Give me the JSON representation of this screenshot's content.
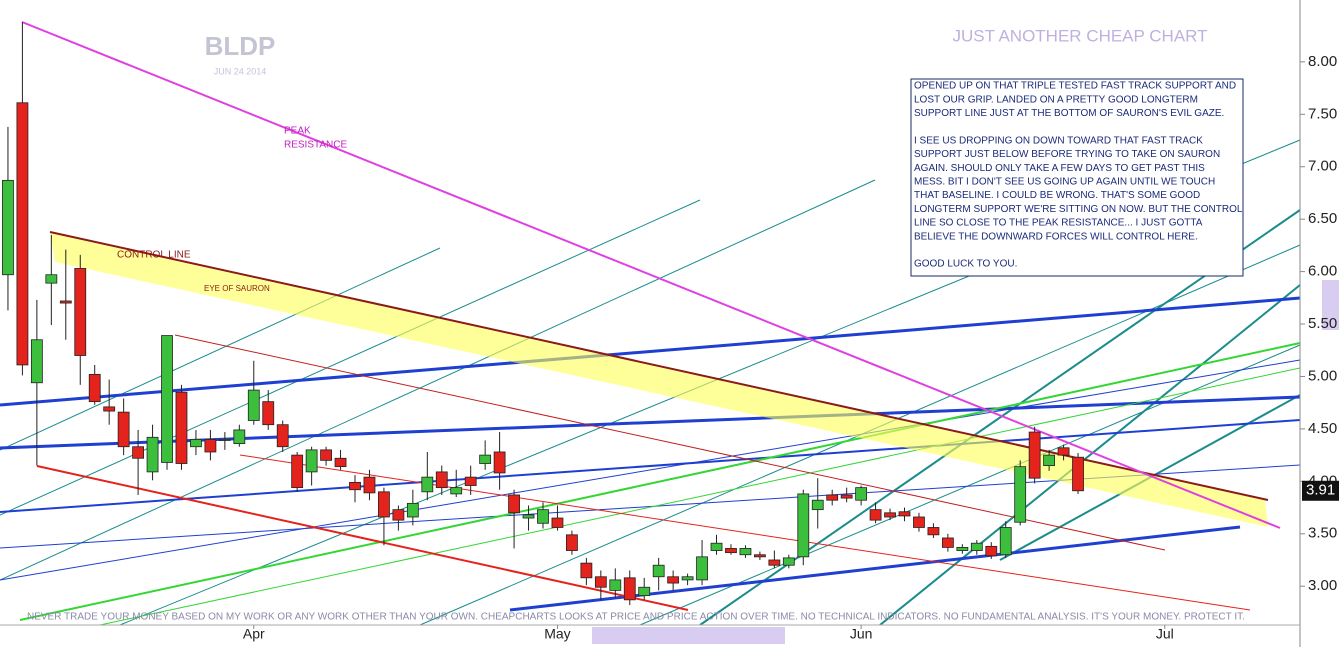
{
  "chart_data": {
    "type": "candlestick",
    "title": "BLDP",
    "subtitle": "JUN 24 2014",
    "header": "JUST ANOTHER CHEAP CHART",
    "annotations": [
      "PEAK",
      "RESISTANCE",
      "CONTROL LINE",
      "EYE OF SAURON"
    ],
    "note": [
      [
        "OPENED UP ON THAT TRIPLE TESTED FAST TRACK SUPPORT AND",
        "LOST OUR GRIP. LANDED ON A PRETTY GOOD LONGTERM",
        "SUPPORT LINE JUST AT THE BOTTOM OF SAURON'S EVIL GAZE."
      ],
      [
        "I SEE US DROPPING ON DOWN TOWARD THAT FAST TRACK",
        "SUPPORT JUST BELOW BEFORE TRYING TO TAKE ON SAURON",
        "AGAIN. SHOULD ONLY TAKE A FEW DAYS TO GET PAST THIS",
        "MESS. BIT I DON'T SEE US GOING UP AGAIN UNTIL WE TOUCH",
        "THAT BASELINE. I COULD BE WRONG. THAT'S SOME GOOD",
        "LONGTERM SUPPORT WE'RE SITTING ON NOW. BUT THE CONTROL",
        "LINE SO CLOSE TO THE PEAK RESISTANCE... I JUST GOTTA",
        "BELIEVE THE DOWNWARD FORCES WILL CONTROL HERE."
      ],
      [
        "GOOD LUCK TO YOU."
      ]
    ],
    "disclaimer": "NEVER TRADE YOUR MONEY BASED ON MY WORK OR ANY WORK OTHER THAN YOUR OWN. CHEAPCHARTS LOOKS AT PRICE AND PRICE ACTION OVER TIME. NO TECHNICAL INDICATORS. NO FUNDAMENTAL ANALYSIS. IT'S YOUR MONEY. PROTECT IT.",
    "open": [
      5.97,
      7.61,
      4.94,
      5.89,
      5.72,
      6.03,
      5.02,
      4.71,
      4.66,
      4.33,
      4.09,
      4.18,
      4.85,
      4.33,
      4.4,
      4.39,
      4.36,
      4.58,
      4.76,
      4.54,
      4.25,
      4.09,
      4.3,
      4.22,
      3.99,
      4.04,
      3.9,
      3.73,
      3.66,
      3.9,
      4.09,
      3.88,
      4.04,
      4.17,
      4.28,
      3.87,
      3.65,
      3.6,
      3.65,
      3.49,
      3.22,
      3.09,
      2.96,
      3.08,
      2.91,
      3.09,
      3.09,
      3.06,
      3.06,
      3.34,
      3.36,
      3.3,
      3.3,
      3.25,
      3.2,
      3.28,
      3.73,
      3.87,
      3.87,
      3.82,
      3.73,
      3.7,
      3.71,
      3.66,
      3.56,
      3.46,
      3.34,
      3.34,
      3.38,
      3.3,
      3.61,
      4.47,
      4.15,
      4.32,
      4.23
    ],
    "high": [
      7.38,
      8.38,
      5.73,
      6.35,
      6.21,
      6.16,
      5.11,
      4.97,
      4.79,
      4.49,
      4.54,
      5.39,
      4.92,
      4.49,
      4.49,
      4.47,
      4.54,
      5.15,
      4.87,
      4.58,
      4.28,
      4.33,
      4.33,
      4.3,
      4.06,
      4.11,
      3.94,
      3.77,
      3.92,
      4.28,
      4.15,
      4.11,
      4.15,
      4.39,
      4.47,
      3.92,
      3.77,
      3.8,
      3.77,
      3.53,
      3.27,
      3.15,
      3.17,
      3.15,
      3.08,
      3.27,
      3.15,
      3.12,
      3.44,
      3.49,
      3.4,
      3.39,
      3.33,
      3.34,
      3.3,
      3.92,
      4.03,
      3.92,
      3.94,
      3.96,
      3.8,
      3.74,
      3.75,
      3.7,
      3.6,
      3.5,
      3.4,
      3.44,
      3.42,
      3.62,
      4.2,
      4.52,
      4.3,
      4.35,
      4.27
    ],
    "low": [
      5.63,
      5.01,
      4.15,
      5.49,
      5.35,
      4.92,
      4.73,
      4.54,
      4.25,
      3.87,
      4.01,
      4.11,
      4.11,
      4.25,
      4.2,
      4.3,
      4.33,
      4.54,
      4.49,
      4.28,
      3.9,
      3.96,
      4.15,
      4.11,
      3.8,
      3.82,
      3.39,
      3.53,
      3.58,
      3.82,
      3.87,
      3.85,
      3.87,
      4.11,
      3.92,
      3.36,
      3.53,
      3.55,
      3.53,
      3.3,
      3.01,
      2.87,
      2.89,
      2.82,
      2.87,
      2.96,
      2.96,
      3.01,
      3.01,
      3.3,
      3.3,
      3.27,
      3.25,
      3.17,
      3.17,
      3.2,
      3.55,
      3.77,
      3.8,
      3.77,
      3.6,
      3.63,
      3.62,
      3.52,
      3.46,
      3.33,
      3.31,
      3.3,
      3.26,
      3.27,
      3.58,
      3.98,
      4.1,
      4.2,
      3.88
    ],
    "close": [
      6.87,
      5.11,
      5.35,
      5.97,
      5.7,
      5.2,
      4.76,
      4.67,
      4.33,
      4.22,
      4.42,
      5.39,
      4.17,
      4.4,
      4.28,
      4.4,
      4.49,
      4.87,
      4.54,
      4.33,
      3.94,
      4.3,
      4.2,
      4.14,
      3.92,
      3.89,
      3.66,
      3.63,
      3.79,
      4.04,
      3.94,
      3.94,
      3.96,
      4.25,
      4.08,
      3.7,
      3.68,
      3.73,
      3.56,
      3.34,
      3.08,
      2.99,
      3.06,
      2.87,
      2.99,
      3.2,
      3.03,
      3.09,
      3.28,
      3.41,
      3.32,
      3.36,
      3.28,
      3.2,
      3.27,
      3.88,
      3.82,
      3.82,
      3.84,
      3.94,
      3.63,
      3.66,
      3.67,
      3.56,
      3.49,
      3.37,
      3.37,
      3.41,
      3.29,
      3.56,
      4.14,
      4.03,
      4.25,
      4.25,
      3.91
    ],
    "up_color": "#3cbf3c",
    "down_color": "#e3231c",
    "xlim": [
      -0.55,
      89.35
    ],
    "xticks": [
      {
        "value": 17,
        "label": "Apr"
      },
      {
        "value": 38,
        "label": "May"
      },
      {
        "value": 59,
        "label": "Jun"
      },
      {
        "value": 80,
        "label": "Jul"
      }
    ],
    "ylim": [
      2.63,
      8.59
    ],
    "yticks": [
      {
        "value": 3,
        "label": "3.00"
      },
      {
        "value": 3.5,
        "label": "3.50"
      },
      {
        "value": 4,
        "label": "4.00"
      },
      {
        "value": 4.5,
        "label": "4.50"
      },
      {
        "value": 5,
        "label": "5.00"
      },
      {
        "value": 5.5,
        "label": "5.50"
      },
      {
        "value": 6,
        "label": "6.00"
      },
      {
        "value": 6.5,
        "label": "6.50"
      },
      {
        "value": 7,
        "label": "7.00"
      },
      {
        "value": 7.5,
        "label": "7.50"
      },
      {
        "value": 8,
        "label": "8.00"
      }
    ]
  }
}
